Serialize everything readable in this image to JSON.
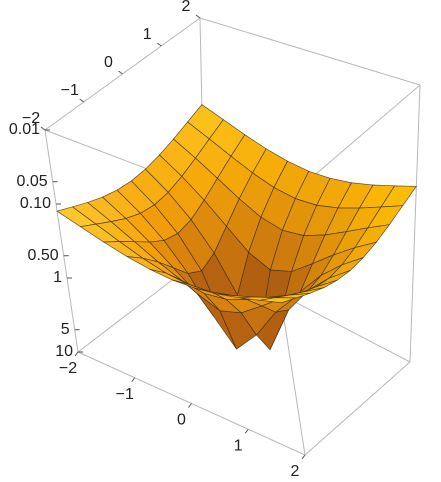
{
  "chart_data": {
    "type": "surface3d",
    "x": [
      -2,
      -1.6,
      -1.2,
      -0.8,
      -0.4,
      0,
      0.4,
      0.8,
      1.2,
      1.6,
      2
    ],
    "y": [
      -2,
      -1.6,
      -1.2,
      -0.8,
      -0.4,
      0,
      0.4,
      0.8,
      1.2,
      1.6,
      2
    ],
    "z": [
      [
        0.125,
        0.152,
        0.184,
        0.216,
        0.24,
        0.25,
        0.24,
        0.216,
        0.184,
        0.152,
        0.125
      ],
      [
        0.152,
        0.195,
        0.25,
        0.313,
        0.368,
        0.391,
        0.368,
        0.313,
        0.25,
        0.195,
        0.152
      ],
      [
        0.184,
        0.25,
        0.347,
        0.481,
        0.625,
        0.694,
        0.625,
        0.481,
        0.347,
        0.25,
        0.184
      ],
      [
        0.216,
        0.313,
        0.481,
        0.781,
        1.25,
        1.56,
        1.25,
        0.781,
        0.481,
        0.313,
        0.216
      ],
      [
        0.24,
        0.368,
        0.625,
        1.25,
        3.13,
        6.25,
        3.13,
        1.25,
        0.625,
        0.368,
        0.24
      ],
      [
        0.25,
        0.391,
        0.694,
        1.56,
        6.25,
        null,
        6.25,
        1.56,
        0.694,
        0.391,
        0.25
      ],
      [
        0.24,
        0.368,
        0.625,
        1.25,
        3.13,
        6.25,
        3.13,
        1.25,
        0.625,
        0.368,
        0.24
      ],
      [
        0.216,
        0.313,
        0.481,
        0.781,
        1.25,
        1.56,
        1.25,
        0.781,
        0.481,
        0.313,
        0.216
      ],
      [
        0.184,
        0.25,
        0.347,
        0.481,
        0.625,
        0.694,
        0.625,
        0.481,
        0.347,
        0.25,
        0.184
      ],
      [
        0.152,
        0.195,
        0.25,
        0.313,
        0.368,
        0.391,
        0.368,
        0.313,
        0.25,
        0.195,
        0.152
      ],
      [
        0.125,
        0.152,
        0.184,
        0.216,
        0.24,
        0.25,
        0.24,
        0.216,
        0.184,
        0.152,
        0.125
      ]
    ],
    "xlim": [
      -2,
      2
    ],
    "ylim": [
      -2,
      2
    ],
    "zlim": [
      0.01,
      10
    ],
    "zscale": "log",
    "zreversed": true,
    "xticks": [
      {
        "value": -2,
        "label": "−2"
      },
      {
        "value": -1,
        "label": "−1"
      },
      0,
      1,
      2
    ],
    "yticks": [
      {
        "value": -2,
        "label": "−2"
      },
      {
        "value": -1,
        "label": "−1"
      },
      0,
      1,
      2
    ],
    "zticks": [
      0.01,
      0.05,
      {
        "value": 0.1,
        "label": "0.10"
      },
      {
        "value": 0.5,
        "label": "0.50"
      },
      1,
      5,
      10
    ]
  }
}
